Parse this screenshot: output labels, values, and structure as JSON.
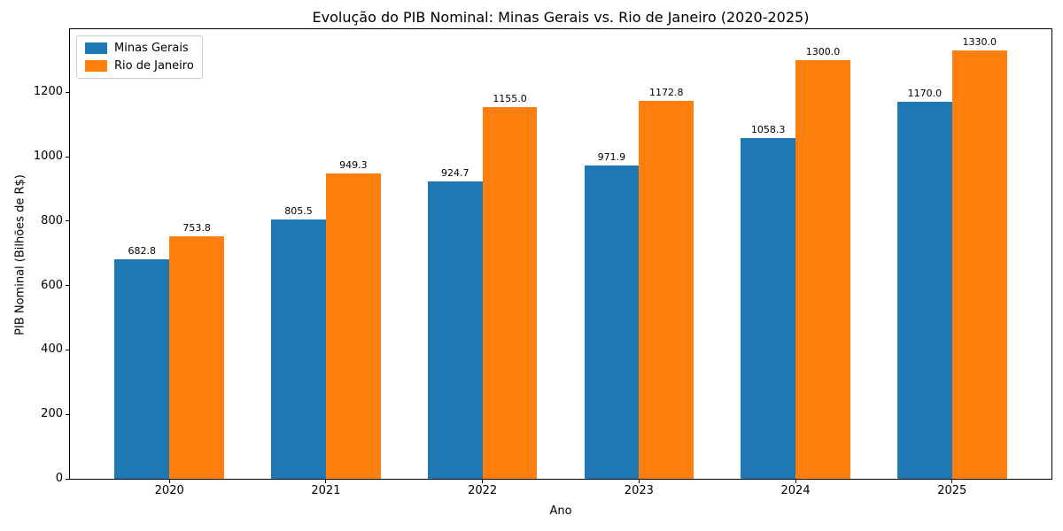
{
  "chart_data": {
    "type": "bar",
    "title": "Evolução do PIB Nominal: Minas Gerais vs. Rio de Janeiro (2020-2025)",
    "xlabel": "Ano",
    "ylabel": "PIB Nominal (Bilhões de R$)",
    "categories": [
      "2020",
      "2021",
      "2022",
      "2023",
      "2024",
      "2025"
    ],
    "series": [
      {
        "name": "Minas Gerais",
        "color": "#1f77b4",
        "values": [
          682.8,
          805.5,
          924.7,
          971.9,
          1058.3,
          1170.0
        ],
        "value_labels": [
          "682.8",
          "805.5",
          "924.7",
          "971.9",
          "1058.3",
          "1170.0"
        ]
      },
      {
        "name": "Rio de Janeiro",
        "color": "#ff7f0e",
        "values": [
          753.8,
          949.3,
          1155.0,
          1172.8,
          1300.0,
          1330.0
        ],
        "value_labels": [
          "753.8",
          "949.3",
          "1155.0",
          "1172.8",
          "1300.0",
          "1330.0"
        ]
      }
    ],
    "yticks": [
      0,
      200,
      400,
      600,
      800,
      1000,
      1200
    ],
    "ylim": [
      0,
      1396.5
    ],
    "xlim": [
      -0.635,
      5.635
    ],
    "bar_width": 0.35,
    "grid": false,
    "legend": {
      "position": "upper left",
      "entries": [
        "Minas Gerais",
        "Rio de Janeiro"
      ]
    },
    "colors": {
      "axes_frame": "#000000",
      "text": "#000000",
      "background": "#ffffff",
      "legend_border": "#cccccc"
    }
  }
}
